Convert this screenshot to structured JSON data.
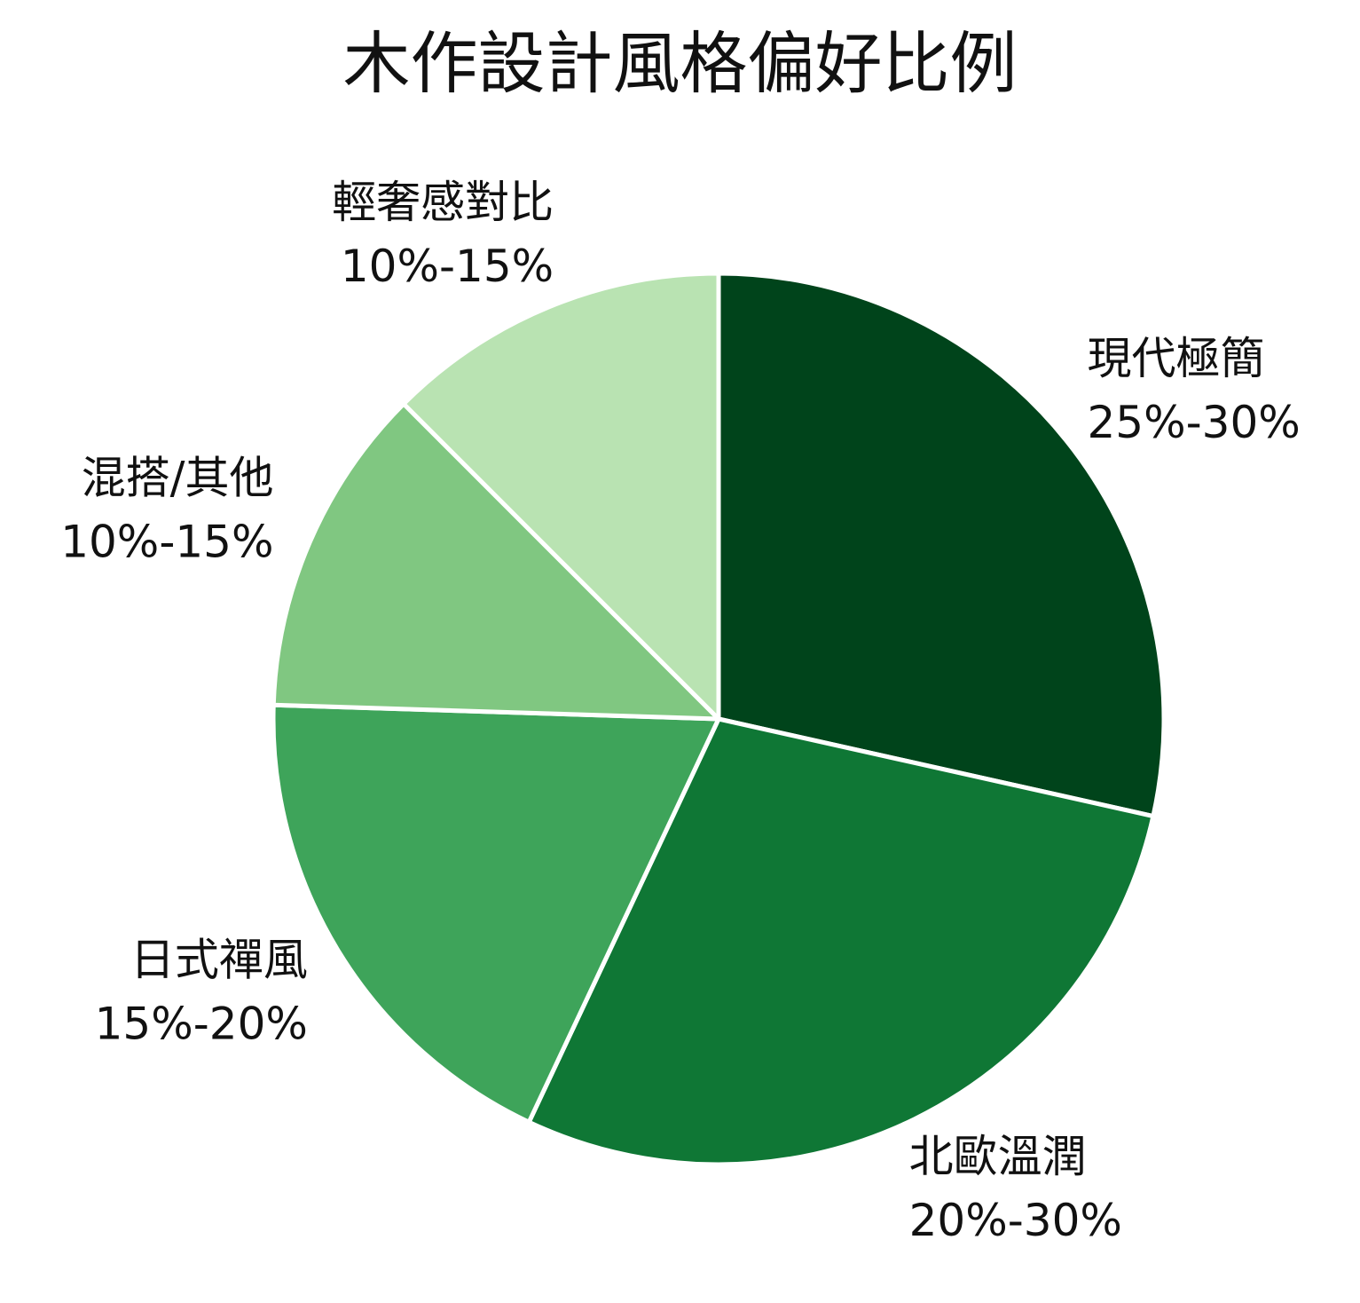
{
  "chart_data": {
    "type": "pie",
    "title": "木作設計風格偏好比例",
    "slices": [
      {
        "label": "現代極簡",
        "range_label": "25%-30%",
        "value": 28.5,
        "color": "#00441b"
      },
      {
        "label": "北歐溫潤",
        "range_label": "20%-30%",
        "value": 28.5,
        "color": "#0f7735"
      },
      {
        "label": "日式禪風",
        "range_label": "15%-20%",
        "value": 18.5,
        "color": "#3ea45a"
      },
      {
        "label": "混搭/其他",
        "range_label": "10%-15%",
        "value": 12.0,
        "color": "#80c781"
      },
      {
        "label": "輕奢感對比",
        "range_label": "10%-15%",
        "value": 12.5,
        "color": "#b9e3b2"
      }
    ],
    "start_angle_deg": 0,
    "direction": "clockwise",
    "legend": "none"
  }
}
